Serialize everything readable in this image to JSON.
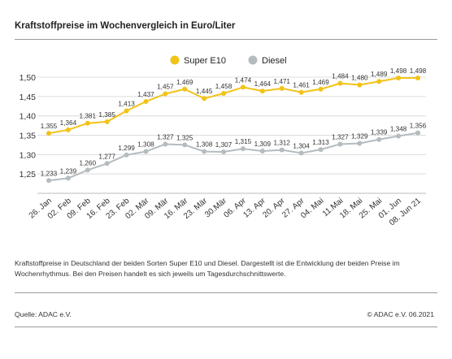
{
  "page": {
    "title": "Kraftstoffpreise im Wochenvergleich in Euro/Liter",
    "description": "Kraftstoffpreise in Deutschland der beiden Sorten Super E10 und Diesel. Dargestellt ist die Entwicklung der beiden Preise im Wochenrhythmus. Bei den Preisen handelt es sich jeweils um Tagesdurchschnittswerte.",
    "source": "Quelle: ADAC e.V.",
    "credit": "© ADAC e.V. 06.2021"
  },
  "chart_data": {
    "type": "line",
    "title": "Kraftstoffpreise im Wochenvergleich in Euro/Liter",
    "categories": [
      "26. Jan",
      "02. Feb",
      "09. Feb",
      "16. Feb",
      "23. Feb",
      "02. Mär",
      "09. Mär",
      "16. Mär",
      "23. Mär",
      "30.Mär",
      "06. Apr",
      "13. Apr",
      "20. Apr",
      "27. Apr",
      "04. Mai",
      "11.Mai",
      "18. Mai",
      "25. Mai",
      "01. Jun",
      "08. Jun 21"
    ],
    "ylim": [
      1.2,
      1.5
    ],
    "yticks": [
      "1,25",
      "1,30",
      "1,35",
      "1,40",
      "1,45",
      "1,50"
    ],
    "grid": true,
    "legend_position": "top-center",
    "series": [
      {
        "name": "Super E10",
        "color": "#f2c318",
        "values": [
          1.355,
          1.364,
          1.381,
          1.385,
          1.413,
          1.437,
          1.457,
          1.469,
          1.445,
          1.458,
          1.474,
          1.464,
          1.471,
          1.461,
          1.469,
          1.484,
          1.48,
          1.489,
          1.498,
          1.498
        ],
        "labels": [
          "1,355",
          "1,364",
          "1,381",
          "1,385",
          "1,413",
          "1,437",
          "1,457",
          "1,469",
          "1,445",
          "1,458",
          "1,474",
          "1,464",
          "1,471",
          "1,461",
          "1,469",
          "1,484",
          "1,480",
          "1,489",
          "1,498",
          "1,498"
        ]
      },
      {
        "name": "Diesel",
        "color": "#b4bcbf",
        "values": [
          1.233,
          1.239,
          1.26,
          1.277,
          1.299,
          1.308,
          1.327,
          1.325,
          1.308,
          1.307,
          1.315,
          1.309,
          1.312,
          1.304,
          1.313,
          1.327,
          1.329,
          1.339,
          1.348,
          1.356
        ],
        "labels": [
          "1,233",
          "1,239",
          "1,260",
          "1,277",
          "1,299",
          "1,308",
          "1,327",
          "1,325",
          "1,308",
          "1,307",
          "1,315",
          "1,309",
          "1,312",
          "1,304",
          "1,313",
          "1,327",
          "1,329",
          "1,339",
          "1,348",
          "1,356"
        ]
      }
    ]
  }
}
